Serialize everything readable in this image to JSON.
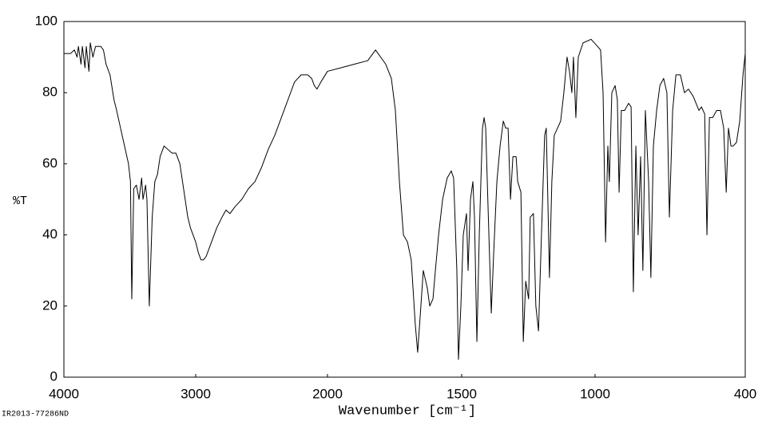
{
  "chart_data": {
    "type": "line",
    "x_label": "Wavenumber [cm⁻¹]",
    "y_label": "%T",
    "footer": "IR2013-77286ND",
    "xlim": [
      4000,
      400
    ],
    "xticks": [
      4000,
      3000,
      2000,
      1500,
      1000,
      400
    ],
    "ylim": [
      0,
      100
    ],
    "yticks": [
      0,
      20,
      40,
      60,
      80,
      100
    ],
    "grid": false,
    "series": [
      {
        "color": "#000000",
        "x": [
          4000,
          3950,
          3920,
          3900,
          3890,
          3870,
          3860,
          3840,
          3830,
          3810,
          3800,
          3780,
          3760,
          3720,
          3700,
          3680,
          3650,
          3620,
          3600,
          3570,
          3540,
          3510,
          3495,
          3485,
          3470,
          3450,
          3430,
          3410,
          3400,
          3380,
          3370,
          3352,
          3330,
          3310,
          3290,
          3270,
          3240,
          3210,
          3180,
          3150,
          3120,
          3100,
          3080,
          3060,
          3040,
          3020,
          3000,
          2980,
          2960,
          2940,
          2920,
          2900,
          2870,
          2840,
          2800,
          2770,
          2740,
          2700,
          2650,
          2600,
          2550,
          2500,
          2450,
          2400,
          2350,
          2300,
          2250,
          2200,
          2150,
          2120,
          2100,
          2080,
          2050,
          2000,
          1950,
          1900,
          1850,
          1821,
          1783,
          1762,
          1747,
          1732,
          1717,
          1702,
          1688,
          1673,
          1664,
          1652,
          1643,
          1628,
          1619,
          1607,
          1598,
          1586,
          1571,
          1554,
          1539,
          1530,
          1518,
          1512,
          1503,
          1494,
          1482,
          1476,
          1467,
          1458,
          1452,
          1443,
          1434,
          1422,
          1416,
          1410,
          1398,
          1389,
          1380,
          1368,
          1356,
          1344,
          1335,
          1326,
          1317,
          1308,
          1296,
          1290,
          1278,
          1269,
          1260,
          1249,
          1243,
          1231,
          1222,
          1212,
          1201,
          1189,
          1183,
          1177,
          1171,
          1162,
          1153,
          1141,
          1129,
          1117,
          1105,
          1096,
          1087,
          1081,
          1072,
          1063,
          1045,
          1015,
          990,
          978,
          968,
          958,
          949,
          943,
          933,
          920,
          911,
          904,
          895,
          882,
          866,
          856,
          847,
          837,
          828,
          818,
          809,
          799,
          786,
          777,
          767,
          754,
          741,
          726,
          713,
          703,
          690,
          677,
          659,
          643,
          627,
          608,
          585,
          575,
          562,
          553,
          543,
          530,
          514,
          499,
          486,
          476,
          467,
          457,
          448,
          435,
          422,
          409,
          400
        ],
        "values": [
          91,
          91,
          92,
          90,
          93,
          88,
          93,
          87,
          93,
          86,
          94,
          90,
          93,
          93,
          92,
          88,
          85,
          78,
          75,
          70,
          65,
          60,
          55,
          22,
          53,
          54,
          50,
          56,
          50,
          54,
          50,
          20,
          45,
          55,
          57,
          62,
          65,
          64,
          63,
          63,
          60,
          55,
          50,
          45,
          42,
          40,
          38,
          35,
          33,
          33,
          34,
          36,
          39,
          42,
          45,
          47,
          46,
          48,
          50,
          53,
          55,
          59,
          64,
          68,
          73,
          78,
          83,
          85,
          85,
          84,
          82,
          81,
          83,
          86,
          87,
          88,
          89,
          92,
          88,
          84,
          75,
          55,
          40,
          38,
          33,
          15,
          7,
          20,
          30,
          25,
          20,
          22,
          30,
          40,
          50,
          56,
          58,
          56,
          30,
          5,
          20,
          40,
          46,
          30,
          50,
          55,
          45,
          10,
          40,
          70,
          73,
          70,
          40,
          18,
          35,
          55,
          65,
          72,
          70,
          70,
          50,
          62,
          62,
          55,
          52,
          10,
          27,
          22,
          45,
          46,
          20,
          13,
          40,
          68,
          70,
          50,
          28,
          55,
          68,
          70,
          72,
          80,
          90,
          86,
          80,
          90,
          73,
          90,
          94,
          95,
          93,
          92,
          80,
          38,
          65,
          55,
          80,
          82,
          78,
          52,
          75,
          75,
          77,
          76,
          24,
          65,
          40,
          62,
          30,
          75,
          55,
          28,
          65,
          75,
          82,
          84,
          80,
          45,
          75,
          85,
          85,
          80,
          81,
          79,
          75,
          76,
          74,
          40,
          73,
          73,
          75,
          75,
          70,
          52,
          70,
          65,
          65,
          66,
          72,
          85,
          91
        ]
      }
    ]
  }
}
